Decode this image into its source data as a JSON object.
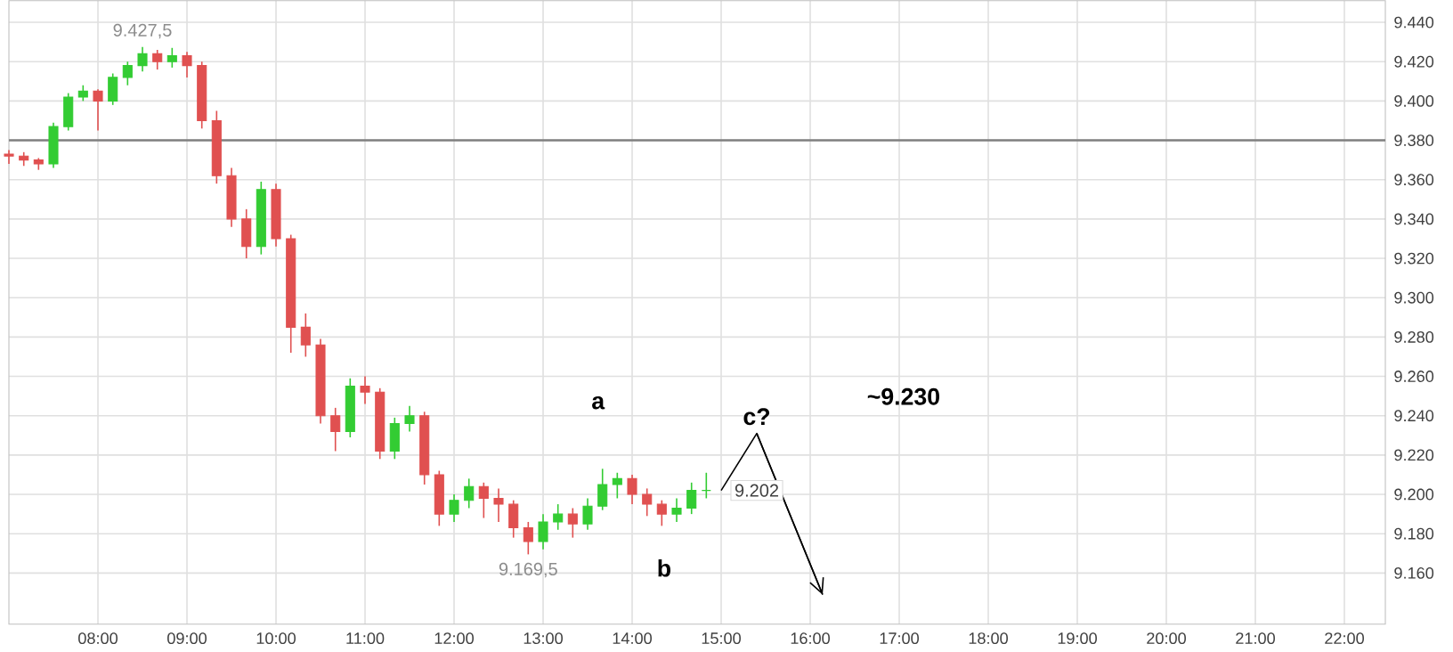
{
  "chart_data": {
    "type": "candlestick",
    "x": [
      7,
      7.167,
      7.333,
      7.5,
      7.667,
      7.833,
      8,
      8.167,
      8.333,
      8.5,
      8.667,
      8.833,
      9,
      9.167,
      9.333,
      9.5,
      9.667,
      9.833,
      10,
      10.167,
      10.333,
      10.5,
      10.667,
      10.833,
      11,
      11.167,
      11.333,
      11.5,
      11.667,
      11.833,
      12,
      12.167,
      12.333,
      12.5,
      12.667,
      12.833,
      13,
      13.167,
      13.333,
      13.5,
      13.667,
      13.833,
      14,
      14.167,
      14.333,
      14.5,
      14.667,
      14.833
    ],
    "ohlc": [
      [
        9373,
        9375,
        9368,
        9372
      ],
      [
        9372,
        9374,
        9367,
        9370
      ],
      [
        9370,
        9371,
        9365,
        9368
      ],
      [
        9368,
        9389,
        9366,
        9387
      ],
      [
        9387,
        9404,
        9385,
        9402
      ],
      [
        9402,
        9408,
        9400,
        9405
      ],
      [
        9405,
        9406,
        9385,
        9400
      ],
      [
        9400,
        9414,
        9398,
        9412
      ],
      [
        9412,
        9420,
        9408,
        9418
      ],
      [
        9418,
        9427.5,
        9415,
        9424
      ],
      [
        9424,
        9426,
        9416,
        9420
      ],
      [
        9420,
        9427,
        9417,
        9423
      ],
      [
        9423,
        9425,
        9412,
        9418
      ],
      [
        9418,
        9420,
        9386,
        9390
      ],
      [
        9390,
        9395,
        9358,
        9362
      ],
      [
        9362,
        9366,
        9336,
        9340
      ],
      [
        9340,
        9345,
        9320,
        9326
      ],
      [
        9326,
        9359,
        9322,
        9355
      ],
      [
        9355,
        9358,
        9326,
        9330
      ],
      [
        9330,
        9332,
        9272,
        9285
      ],
      [
        9285,
        9292,
        9270,
        9276
      ],
      [
        9276,
        9279,
        9236,
        9240
      ],
      [
        9240,
        9244,
        9222,
        9232
      ],
      [
        9232,
        9259,
        9229,
        9255
      ],
      [
        9255,
        9260,
        9246,
        9252
      ],
      [
        9252,
        9254,
        9218,
        9222
      ],
      [
        9222,
        9239,
        9218,
        9236
      ],
      [
        9236,
        9245,
        9232,
        9240
      ],
      [
        9240,
        9242,
        9205,
        9210
      ],
      [
        9210,
        9212,
        9184,
        9190
      ],
      [
        9190,
        9200,
        9186,
        9197
      ],
      [
        9197,
        9208,
        9193,
        9204
      ],
      [
        9204,
        9206,
        9188,
        9198
      ],
      [
        9198,
        9203,
        9186,
        9195
      ],
      [
        9195,
        9197,
        9178,
        9183
      ],
      [
        9183,
        9186,
        9169.5,
        9176
      ],
      [
        9176,
        9190,
        9172,
        9186
      ],
      [
        9186,
        9195,
        9182,
        9190
      ],
      [
        9190,
        9193,
        9178,
        9185
      ],
      [
        9185,
        9198,
        9182,
        9194
      ],
      [
        9194,
        9213,
        9192,
        9205
      ],
      [
        9205,
        9211,
        9198,
        9208
      ],
      [
        9208,
        9210,
        9195,
        9200
      ],
      [
        9200,
        9203,
        9189,
        9195
      ],
      [
        9195,
        9197,
        9184,
        9190
      ],
      [
        9190,
        9198,
        9186,
        9193
      ],
      [
        9193,
        9206,
        9190,
        9202
      ],
      [
        9202,
        9211,
        9198,
        9202
      ]
    ],
    "colors": [
      "#e05050",
      "#e05050",
      "#e05050",
      "#33cc33",
      "#33cc33",
      "#33cc33",
      "#e05050",
      "#33cc33",
      "#33cc33",
      "#33cc33",
      "#e05050",
      "#33cc33",
      "#e05050",
      "#e05050",
      "#e05050",
      "#e05050",
      "#e05050",
      "#33cc33",
      "#e05050",
      "#e05050",
      "#e05050",
      "#e05050",
      "#e05050",
      "#33cc33",
      "#e05050",
      "#e05050",
      "#33cc33",
      "#33cc33",
      "#e05050",
      "#e05050",
      "#33cc33",
      "#33cc33",
      "#e05050",
      "#e05050",
      "#e05050",
      "#e05050",
      "#33cc33",
      "#33cc33",
      "#e05050",
      "#33cc33",
      "#33cc33",
      "#33cc33",
      "#e05050",
      "#e05050",
      "#e05050",
      "#33cc33",
      "#33cc33",
      "#33cc33"
    ],
    "series": [
      {
        "type": "line",
        "x": [
          15.0,
          15.4,
          16.14
        ],
        "values": [
          9202,
          9231,
          9149
        ],
        "color": "#000000"
      }
    ],
    "xlim": [
      7.0,
      22.46
    ],
    "ylim": [
      9134,
      9451
    ],
    "xticks": [
      {
        "value": 8,
        "label": "08:00"
      },
      {
        "value": 9,
        "label": "09:00"
      },
      {
        "value": 10,
        "label": "10:00"
      },
      {
        "value": 11,
        "label": "11:00"
      },
      {
        "value": 12,
        "label": "12:00"
      },
      {
        "value": 13,
        "label": "13:00"
      },
      {
        "value": 14,
        "label": "14:00"
      },
      {
        "value": 15,
        "label": "15:00"
      },
      {
        "value": 16,
        "label": "16:00"
      },
      {
        "value": 17,
        "label": "17:00"
      },
      {
        "value": 18,
        "label": "18:00"
      },
      {
        "value": 19,
        "label": "19:00"
      },
      {
        "value": 20,
        "label": "20:00"
      },
      {
        "value": 21,
        "label": "21:00"
      },
      {
        "value": 22,
        "label": "22:00"
      }
    ],
    "yticks": [
      {
        "value": 9160,
        "label": "9.160"
      },
      {
        "value": 9180,
        "label": "9.180"
      },
      {
        "value": 9200,
        "label": "9.200"
      },
      {
        "value": 9220,
        "label": "9.220"
      },
      {
        "value": 9240,
        "label": "9.240"
      },
      {
        "value": 9260,
        "label": "9.260"
      },
      {
        "value": 9280,
        "label": "9.280"
      },
      {
        "value": 9300,
        "label": "9.300"
      },
      {
        "value": 9320,
        "label": "9.320"
      },
      {
        "value": 9340,
        "label": "9.340"
      },
      {
        "value": 9360,
        "label": "9.360"
      },
      {
        "value": 9380,
        "label": "9.380"
      },
      {
        "value": 9400,
        "label": "9.400"
      },
      {
        "value": 9420,
        "label": "9.420"
      },
      {
        "value": 9440,
        "label": "9.440"
      }
    ],
    "grid": true,
    "ref_lines": [
      {
        "axis": "y",
        "value": 9380,
        "color": "#808080"
      }
    ],
    "annotations": [
      {
        "text": "9.427,5",
        "x": 8.5,
        "y": 9427.5
      },
      {
        "text": "9.169,5",
        "x": 12.833,
        "y": 9169.5
      },
      {
        "text": "9.202",
        "x": 15.4,
        "y": 9202
      },
      "a",
      "b",
      {
        "text": "c?",
        "x": 15.4,
        "y": 9231
      },
      "~9.230"
    ]
  }
}
